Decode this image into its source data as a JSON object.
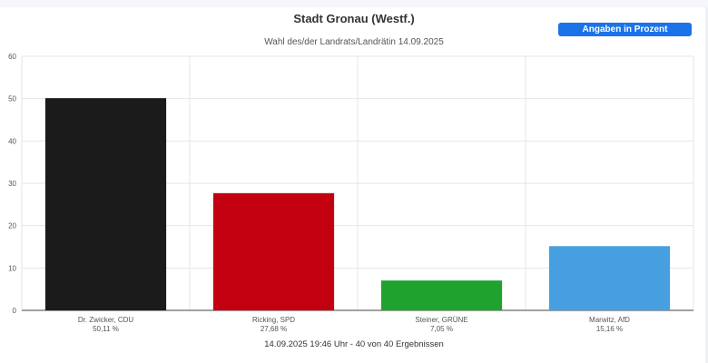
{
  "header": {
    "button_label": "Angaben in Prozent",
    "button_color": "#1a73e8"
  },
  "chart_data": {
    "type": "bar",
    "title": "Stadt Gronau (Westf.)",
    "subtitle": "Wahl des/der Landrats/Landrätin 14.09.2025",
    "categories": [
      "Dr. Zwicker, CDU",
      "Ricking, SPD",
      "Steiner, GRÜNE",
      "Marwitz, AfD"
    ],
    "values": [
      50.11,
      27.68,
      7.05,
      15.16
    ],
    "value_labels": [
      "50,11 %",
      "27,68 %",
      "7,05 %",
      "15,16 %"
    ],
    "colors": [
      "#1b1b1b",
      "#c3000f",
      "#1fa22e",
      "#489fdf"
    ],
    "ylim": [
      0,
      60
    ],
    "yticks": [
      0,
      10,
      20,
      30,
      40,
      50,
      60
    ],
    "grid": true,
    "xlabel": "",
    "ylabel": ""
  },
  "footer": {
    "status": "14.09.2025 19:46 Uhr - 40 von 40 Ergebnissen"
  }
}
